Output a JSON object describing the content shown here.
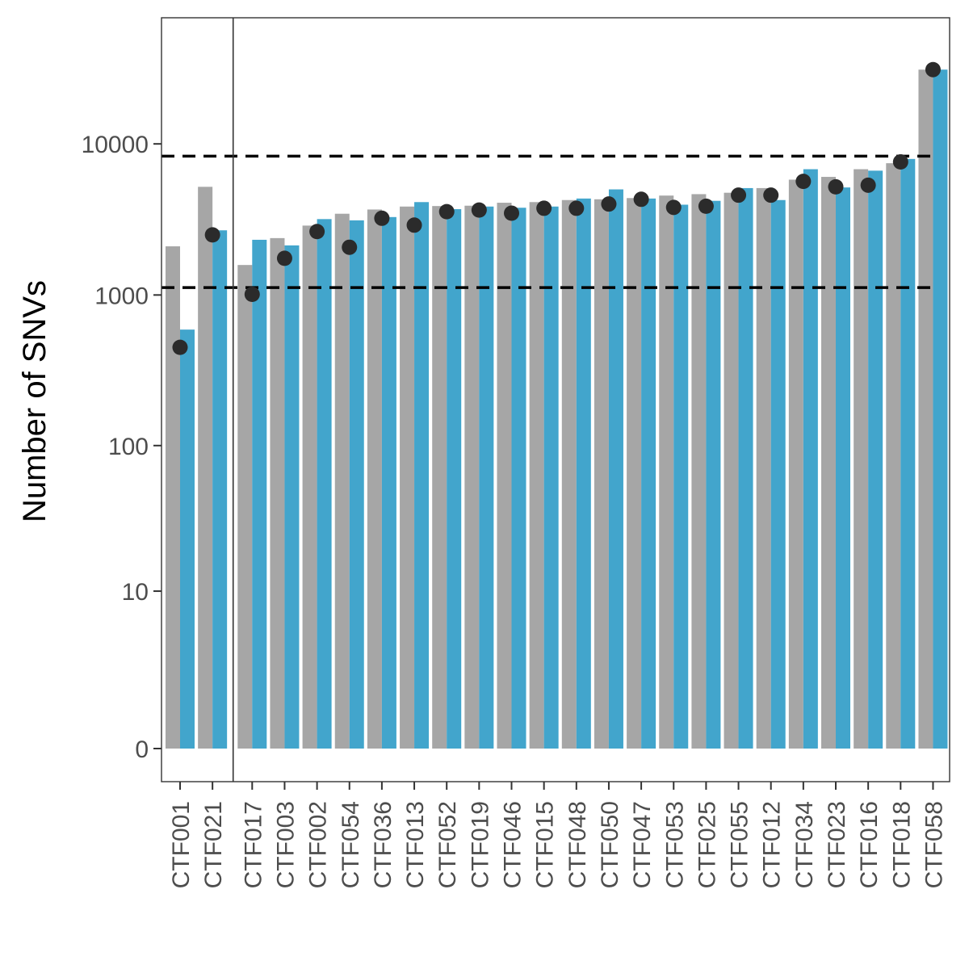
{
  "chart_data": {
    "type": "bar",
    "ylabel": "Number of SNVs",
    "xlabel": "",
    "y_scale": "log10(x+1)",
    "yticks": [
      0,
      10,
      100,
      1000,
      10000
    ],
    "ytick_labels": [
      "0",
      "10",
      "100",
      "1000",
      "10000"
    ],
    "grid": false,
    "legend": "none",
    "colors": {
      "series_a": "#a6a6a6",
      "series_b": "#42a5cc",
      "points": "#2b2b2b",
      "reference_lines": "#000000",
      "panel_border": "#333333"
    },
    "categories": [
      "CTF001",
      "CTF021",
      "CTF017",
      "CTF003",
      "CTF002",
      "CTF054",
      "CTF036",
      "CTF013",
      "CTF052",
      "CTF019",
      "CTF046",
      "CTF015",
      "CTF048",
      "CTF050",
      "CTF047",
      "CTF053",
      "CTF025",
      "CTF055",
      "CTF012",
      "CTF034",
      "CTF023",
      "CTF016",
      "CTF018",
      "CTF058"
    ],
    "series": [
      {
        "values": [
          2100,
          5200,
          1580,
          2380,
          2880,
          3450,
          3680,
          3850,
          3880,
          3900,
          4080,
          4120,
          4250,
          4300,
          4380,
          4550,
          4650,
          4750,
          5100,
          5800,
          6050,
          6800,
          7450,
          31000
        ]
      },
      {
        "values": [
          590,
          2680,
          2320,
          2130,
          3180,
          3120,
          3280,
          4120,
          3700,
          3850,
          3780,
          3850,
          4350,
          5000,
          4350,
          3960,
          4200,
          5100,
          4250,
          6800,
          5150,
          6650,
          7950,
          31000
        ]
      }
    ],
    "points": [
      450,
      2500,
      1010,
      1750,
      2630,
      2070,
      3220,
      2900,
      3560,
      3650,
      3480,
      3750,
      3750,
      4000,
      4300,
      3800,
      3870,
      4580,
      4580,
      5650,
      5200,
      5330,
      7600,
      31000
    ],
    "reference_lines": [
      1120,
      8300
    ],
    "group_divider_after": "CTF021"
  }
}
